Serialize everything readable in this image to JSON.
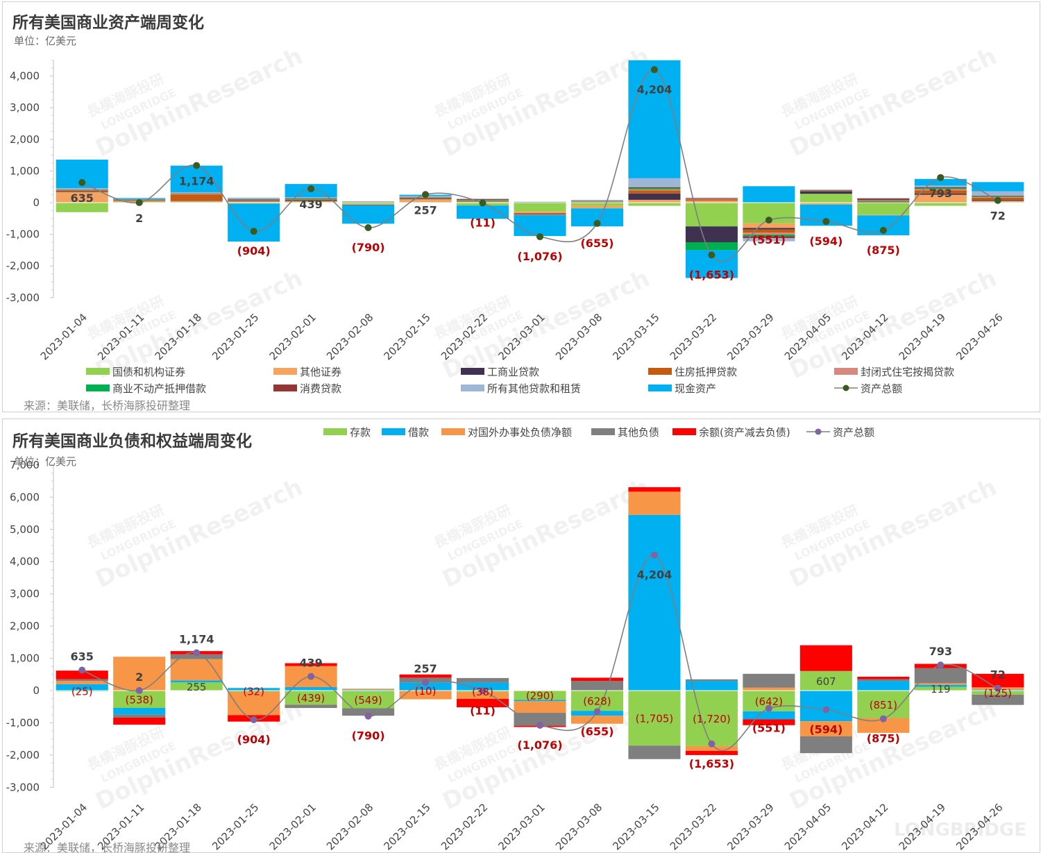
{
  "top": {
    "title": "所有美国商业资产端周变化",
    "unit": "单位：亿美元",
    "source": "来源：美联储，长桥海豚投研整理"
  },
  "bottom": {
    "title": "所有美国商业负债和权益端周变化",
    "unit": "单位：亿美元",
    "source": "来源：美联储，长桥海豚投研整理"
  },
  "watermark": {
    "brand": "DolphinResearch",
    "sub": "LONGBRIDGE",
    "cn": "長橋海豚投研",
    "corner": "LONGBRIDGE"
  },
  "colors": {
    "total_line": "#7f7f7f",
    "total_marker_top": "#3a5a20",
    "total_marker_bottom": "#8064a2",
    "label_neg": "#c00000",
    "label_pos": "#404040"
  },
  "chart_data": [
    {
      "type": "bar",
      "stacked": true,
      "title": "所有美国商业资产端周变化",
      "ylabel": "单位：亿美元",
      "ylim": [
        -3000,
        4500
      ],
      "yticks": [
        -3000,
        -2000,
        -1000,
        0,
        1000,
        2000,
        3000,
        4000
      ],
      "ytick_labels": [
        "-3,000",
        "-2,000",
        "-1,000",
        "0",
        "1,000",
        "2,000",
        "3,000",
        "4,000"
      ],
      "categories": [
        "2023-01-04",
        "2023-01-11",
        "2023-01-18",
        "2023-01-25",
        "2023-02-01",
        "2023-02-08",
        "2023-02-15",
        "2023-02-22",
        "2023-03-01",
        "2023-03-08",
        "2023-03-15",
        "2023-03-22",
        "2023-03-29",
        "2023-04-05",
        "2023-04-12",
        "2023-04-19",
        "2023-04-26"
      ],
      "legend_position": "bottom",
      "series": [
        {
          "name": "国债和机构证券",
          "color": "#92d050",
          "values": [
            -300,
            30,
            20,
            -30,
            20,
            -50,
            20,
            -90,
            -280,
            -100,
            -100,
            -750,
            -650,
            280,
            -380,
            -100,
            20
          ]
        },
        {
          "name": "其他证券",
          "color": "#f4a460",
          "values": [
            340,
            20,
            30,
            40,
            30,
            -20,
            90,
            30,
            -60,
            -80,
            90,
            60,
            -150,
            -60,
            -20,
            250,
            40
          ]
        },
        {
          "name": "工商业贷款",
          "color": "#403151",
          "values": [
            20,
            10,
            10,
            20,
            30,
            -15,
            20,
            10,
            -20,
            10,
            200,
            -500,
            -50,
            80,
            30,
            40,
            30
          ]
        },
        {
          "name": "住房抵押贷款",
          "color": "#c55a11",
          "values": [
            30,
            20,
            200,
            20,
            20,
            10,
            20,
            20,
            -20,
            20,
            100,
            40,
            -100,
            10,
            20,
            100,
            70
          ]
        },
        {
          "name": "封闭式住宅按揭贷款",
          "color": "#d98880",
          "values": [
            10,
            10,
            20,
            10,
            10,
            5,
            10,
            10,
            -15,
            10,
            30,
            20,
            -60,
            10,
            10,
            40,
            20
          ]
        },
        {
          "name": "商业不动产抵押借款",
          "color": "#00b050",
          "values": [
            10,
            10,
            10,
            10,
            20,
            10,
            10,
            20,
            10,
            10,
            40,
            -250,
            -50,
            10,
            20,
            30,
            20
          ]
        },
        {
          "name": "消费贷款",
          "color": "#943634",
          "values": [
            10,
            5,
            10,
            10,
            10,
            5,
            10,
            20,
            10,
            10,
            30,
            20,
            -60,
            5,
            50,
            30,
            20
          ]
        },
        {
          "name": "所有其他贷款和租赁",
          "color": "#9fb6d6",
          "values": [
            40,
            10,
            30,
            50,
            30,
            10,
            30,
            20,
            10,
            30,
            280,
            20,
            -100,
            20,
            20,
            50,
            140
          ]
        },
        {
          "name": "现金资产",
          "color": "#00b0f0",
          "values": [
            900,
            30,
            840,
            -1200,
            420,
            -580,
            40,
            -420,
            -660,
            -570,
            3730,
            -880,
            520,
            -670,
            -630,
            210,
            290
          ]
        }
      ],
      "totals": {
        "name": "资产总额",
        "values": [
          635,
          2,
          1174,
          -904,
          439,
          -790,
          257,
          -11,
          -1076,
          -655,
          4204,
          -1653,
          -551,
          -594,
          -875,
          793,
          72
        ],
        "labels": [
          "635",
          "2",
          "1,174",
          "(904)",
          "439",
          "(790)",
          "257",
          "(11)",
          "(1,076)",
          "(655)",
          "4,204",
          "(1,653)",
          "(551)",
          "(594)",
          "(875)",
          "793",
          "72"
        ]
      }
    },
    {
      "type": "bar",
      "stacked": true,
      "title": "所有美国商业负债和权益端周变化",
      "ylabel": "单位：亿美元",
      "ylim": [
        -3000,
        7000
      ],
      "yticks": [
        -3000,
        -2000,
        -1000,
        0,
        1000,
        2000,
        3000,
        4000,
        5000,
        6000,
        7000
      ],
      "ytick_labels": [
        "-3,000",
        "-2,000",
        "-1,000",
        "0",
        "1,000",
        "2,000",
        "3,000",
        "4,000",
        "5,000",
        "6,000",
        "7,000"
      ],
      "categories": [
        "2023-01-04",
        "2023-01-11",
        "2023-01-18",
        "2023-01-25",
        "2023-02-01",
        "2023-02-08",
        "2023-02-15",
        "2023-02-22",
        "2023-03-01",
        "2023-03-08",
        "2023-03-15",
        "2023-03-22",
        "2023-03-29",
        "2023-04-05",
        "2023-04-12",
        "2023-04-19",
        "2023-04-26"
      ],
      "legend_position": "top",
      "series": [
        {
          "name": "存款",
          "color": "#92d050",
          "values": [
            -25,
            -538,
            255,
            -32,
            -439,
            -549,
            -10,
            -38,
            -290,
            -628,
            -1705,
            -1720,
            -642,
            607,
            -851,
            119,
            -125
          ]
        },
        {
          "name": "借款",
          "color": "#00b0f0",
          "values": [
            200,
            -200,
            60,
            80,
            110,
            30,
            250,
            250,
            -40,
            -150,
            5450,
            300,
            -250,
            -950,
            300,
            60,
            30
          ]
        },
        {
          "name": "对国外办事处负债净额",
          "color": "#f79646",
          "values": [
            100,
            1050,
            660,
            -730,
            650,
            30,
            -260,
            -220,
            -360,
            -250,
            720,
            -150,
            90,
            -470,
            -460,
            50,
            70
          ]
        },
        {
          "name": "其他负债",
          "color": "#7f7f7f",
          "values": [
            50,
            -100,
            150,
            0,
            -100,
            -230,
            150,
            140,
            -400,
            300,
            -420,
            50,
            430,
            -520,
            50,
            470,
            -320
          ]
        },
        {
          "name": "余额(资产减去负债)",
          "color": "#ff0000",
          "values": [
            270,
            -220,
            100,
            -200,
            90,
            0,
            100,
            -260,
            -40,
            100,
            140,
            -130,
            -180,
            800,
            80,
            130,
            420
          ]
        }
      ],
      "totals": {
        "name": "资产总额",
        "values": [
          635,
          2,
          1174,
          -904,
          439,
          -790,
          257,
          -11,
          -1076,
          -655,
          4204,
          -1653,
          -551,
          -594,
          -875,
          793,
          72
        ],
        "labels": [
          "635",
          "2",
          "1,174",
          "(904)",
          "439",
          "(790)",
          "257",
          "(11)",
          "(1,076)",
          "(655)",
          "4,204",
          "(1,653)",
          "(551)",
          "(594)",
          "(875)",
          "793",
          "72"
        ]
      },
      "segment_labels": [
        "(25)",
        "(538)",
        "255",
        "(32)",
        "(439)",
        "(549)",
        "(10)",
        "(38)",
        "(290)",
        "(628)",
        "(1,705)",
        "(1,720)",
        "(642)",
        "607",
        "(851)",
        "119",
        "(125)"
      ]
    }
  ]
}
